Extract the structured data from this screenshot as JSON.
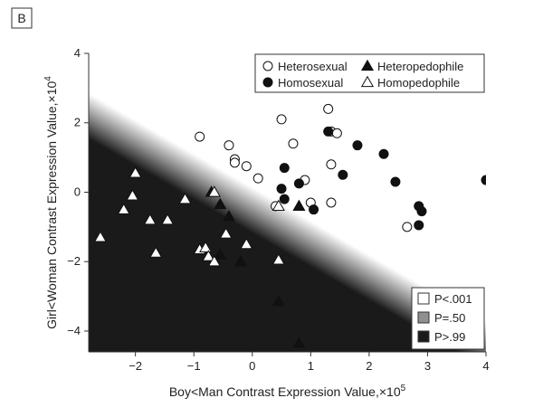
{
  "panel_label": "B",
  "chart_data": {
    "type": "scatter",
    "xlabel": "Boy<Man Contrast Expression Value,×10",
    "xlabel_exp": "5",
    "ylabel": "Girl<Woman Contrast Expression Value,×10",
    "ylabel_exp": "4",
    "xlim": [
      -2.8,
      4.0
    ],
    "ylim": [
      -4.6,
      4.0
    ],
    "xticks": [
      -2,
      -1,
      0,
      1,
      2,
      3,
      4
    ],
    "xtick_labels": [
      "−2",
      "−1",
      "0",
      "1",
      "2",
      "3",
      "4"
    ],
    "yticks": [
      -4,
      -2,
      0,
      2,
      4
    ],
    "ytick_labels": [
      "−4",
      "−2",
      "0",
      "2",
      "4"
    ],
    "grid": false,
    "legend_position": "top-right",
    "probability_legend_position": "bottom-right",
    "background_gradient": {
      "description_line": [
        [
          -2.8,
          2.2
        ],
        [
          4.0,
          -4.4
        ]
      ],
      "levels": [
        {
          "label": "P<.001",
          "color": "#ffffff"
        },
        {
          "label": "P=.50",
          "color": "#909090"
        },
        {
          "label": "P>.99",
          "color": "#1a1a1a"
        }
      ]
    },
    "series": [
      {
        "name": "Heterosexual",
        "marker": "circle-open",
        "points": [
          [
            -0.9,
            1.6
          ],
          [
            -0.4,
            1.35
          ],
          [
            -0.3,
            0.95
          ],
          [
            -0.3,
            0.85
          ],
          [
            -0.1,
            0.75
          ],
          [
            0.1,
            0.4
          ],
          [
            0.5,
            2.1
          ],
          [
            0.7,
            1.4
          ],
          [
            0.9,
            0.35
          ],
          [
            1.0,
            -0.3
          ],
          [
            1.3,
            2.4
          ],
          [
            1.35,
            1.75
          ],
          [
            1.45,
            1.7
          ],
          [
            1.35,
            0.8
          ],
          [
            1.35,
            -0.3
          ],
          [
            2.65,
            -1.0
          ],
          [
            0.4,
            -0.4
          ]
        ]
      },
      {
        "name": "Homosexual",
        "marker": "circle-filled",
        "points": [
          [
            0.55,
            0.7
          ],
          [
            0.5,
            0.1
          ],
          [
            0.55,
            -0.2
          ],
          [
            0.8,
            0.25
          ],
          [
            1.05,
            -0.5
          ],
          [
            1.3,
            1.75
          ],
          [
            1.55,
            0.5
          ],
          [
            1.8,
            1.35
          ],
          [
            2.25,
            1.1
          ],
          [
            2.45,
            0.3
          ],
          [
            2.85,
            -0.4
          ],
          [
            2.9,
            -0.55
          ],
          [
            2.85,
            -0.95
          ],
          [
            4.0,
            0.35
          ]
        ]
      },
      {
        "name": "Heteropedophile",
        "marker": "triangle-filled",
        "points": [
          [
            -0.7,
            0.0
          ],
          [
            -0.55,
            -0.35
          ],
          [
            -0.4,
            -0.7
          ],
          [
            -0.55,
            -1.8
          ],
          [
            -0.2,
            -2.0
          ],
          [
            0.8,
            -0.4
          ],
          [
            0.45,
            -3.15
          ],
          [
            0.8,
            -4.35
          ]
        ]
      },
      {
        "name": "Homopedophile",
        "marker": "triangle-open",
        "points": [
          [
            -2.6,
            -1.3
          ],
          [
            -2.0,
            0.55
          ],
          [
            -2.05,
            -0.1
          ],
          [
            -2.2,
            -0.5
          ],
          [
            -1.75,
            -0.8
          ],
          [
            -1.45,
            -0.8
          ],
          [
            -1.65,
            -1.75
          ],
          [
            -1.15,
            -0.2
          ],
          [
            -0.9,
            -1.65
          ],
          [
            -0.8,
            -1.6
          ],
          [
            -0.75,
            -1.85
          ],
          [
            -0.65,
            -2.0
          ],
          [
            -0.45,
            -1.2
          ],
          [
            -0.1,
            -1.5
          ],
          [
            0.45,
            -0.4
          ],
          [
            0.45,
            -1.95
          ],
          [
            -0.65,
            0.0
          ]
        ]
      }
    ]
  }
}
